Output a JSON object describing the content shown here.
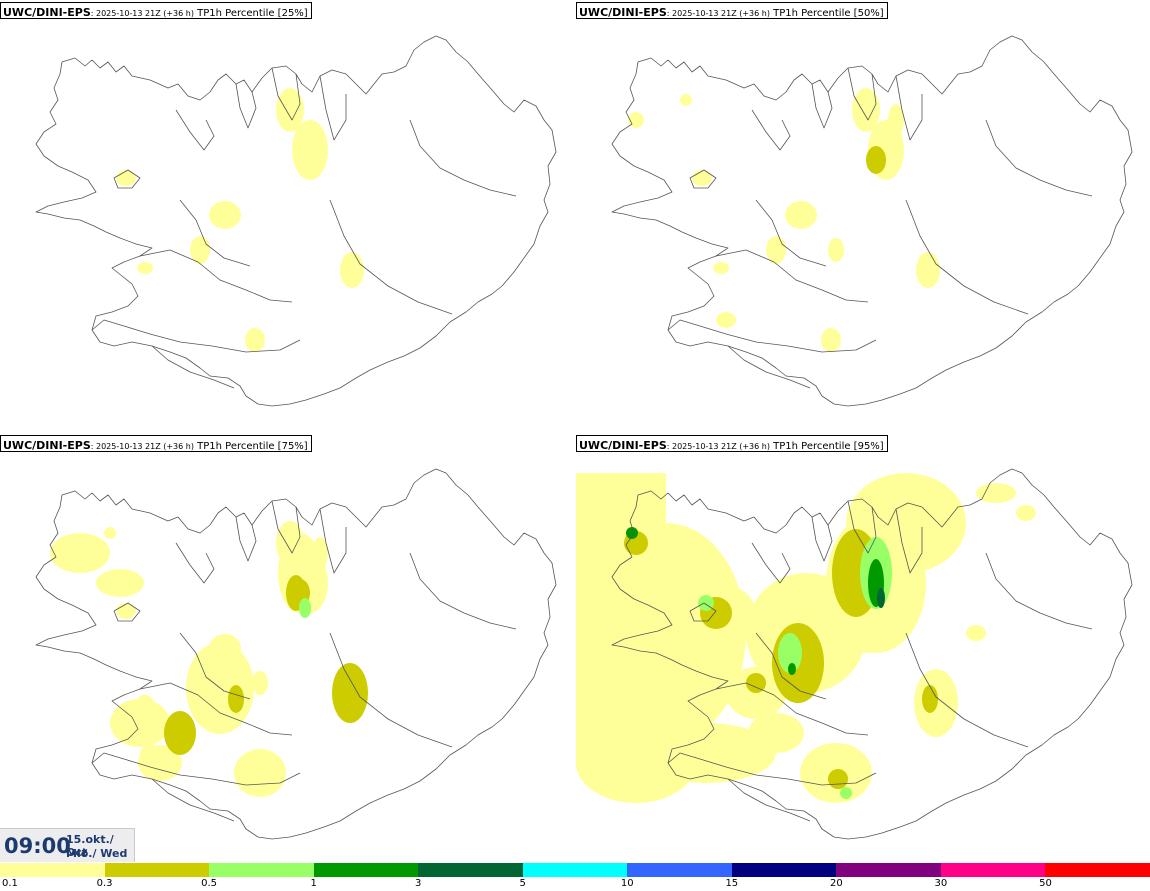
{
  "panels": [
    {
      "model": "UWC/DINI-EPS",
      "run": ": 2025-10-13 21Z (+36 h)",
      "param": " TP1h Percentile [25%]"
    },
    {
      "model": "UWC/DINI-EPS",
      "run": ": 2025-10-13 21Z (+36 h)",
      "param": " TP1h Percentile [50%]"
    },
    {
      "model": "UWC/DINI-EPS",
      "run": ": 2025-10-13 21Z (+36 h)",
      "param": " TP1h Percentile [75%]"
    },
    {
      "model": "UWC/DINI-EPS",
      "run": ": 2025-10-13 21Z (+36 h)",
      "param": " TP1h Percentile [95%]"
    }
  ],
  "valid_time": {
    "hour": "09:00",
    "date": "15.okt./ Oct",
    "day": "Mið./ Wed"
  },
  "legend": {
    "ticks": [
      "0.1",
      "0.3",
      "0.5",
      "1",
      "3",
      "5",
      "10",
      "15",
      "20",
      "30",
      "50"
    ],
    "colors": [
      "#ffff99",
      "#cccc00",
      "#99ff66",
      "#009900",
      "#006633",
      "#00ffff",
      "#3366ff",
      "#000080",
      "#800080",
      "#ff0088",
      "#ff0000"
    ]
  },
  "colors": {
    "coast": "#555555",
    "rain_low": "#ffff99",
    "rain_mid": "#cccc00",
    "rain_high": "#99ff66",
    "rain_heavy": "#009900",
    "rain_max": "#006633"
  }
}
